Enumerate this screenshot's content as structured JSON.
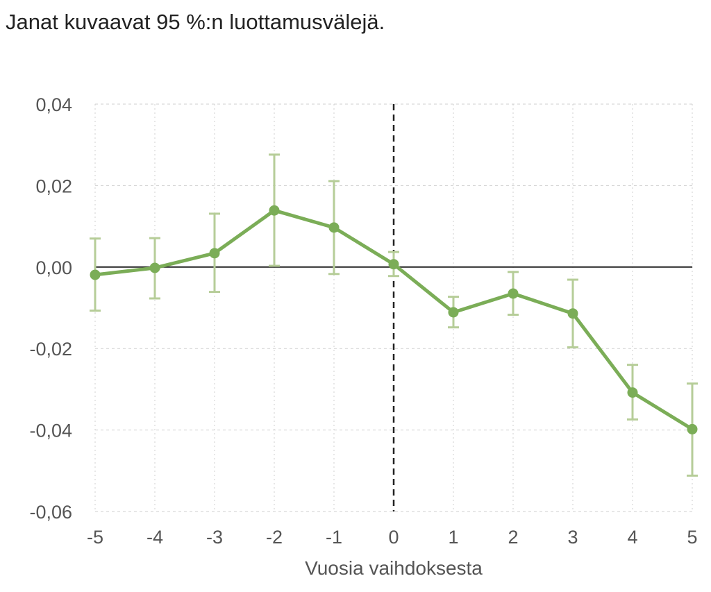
{
  "subtitle": "Janat kuvaavat 95 %:n luottamusvälejä.",
  "chart_data": {
    "type": "line",
    "title": "",
    "xlabel": "Vuosia vaihdoksesta",
    "ylabel": "",
    "x": [
      -5,
      -4,
      -3,
      -2,
      -1,
      0,
      1,
      2,
      3,
      4,
      5
    ],
    "series": [
      {
        "values": [
          -0.0019,
          -0.0002,
          0.0034,
          0.0139,
          0.0097,
          0.0007,
          -0.0111,
          -0.0065,
          -0.0114,
          -0.0308,
          -0.0398
        ],
        "ci_upper": [
          0.007,
          0.0071,
          0.0131,
          0.0276,
          0.0211,
          0.0037,
          -0.0073,
          -0.0012,
          -0.0031,
          -0.024,
          -0.0286
        ],
        "ci_lower": [
          -0.0107,
          -0.0077,
          -0.0061,
          0.0003,
          -0.0017,
          -0.0022,
          -0.0148,
          -0.0117,
          -0.0197,
          -0.0374,
          -0.0512
        ],
        "color": "#7bad57",
        "error_color": "#b6cd98"
      }
    ],
    "xlim": [
      -5,
      5
    ],
    "ylim": [
      -0.06,
      0.04
    ],
    "yticks": [
      "0,04",
      "0,02",
      "0,00",
      "-0,02",
      "-0,04",
      "-0,06"
    ],
    "ytick_values": [
      0.04,
      0.02,
      0.0,
      -0.02,
      -0.04,
      -0.06
    ],
    "xticks": [
      "-5",
      "-4",
      "-3",
      "-2",
      "-1",
      "0",
      "1",
      "2",
      "3",
      "4",
      "5"
    ],
    "grid": true,
    "reference_lines": {
      "horizontal_at": 0,
      "vertical_dashed_at": 0
    }
  }
}
